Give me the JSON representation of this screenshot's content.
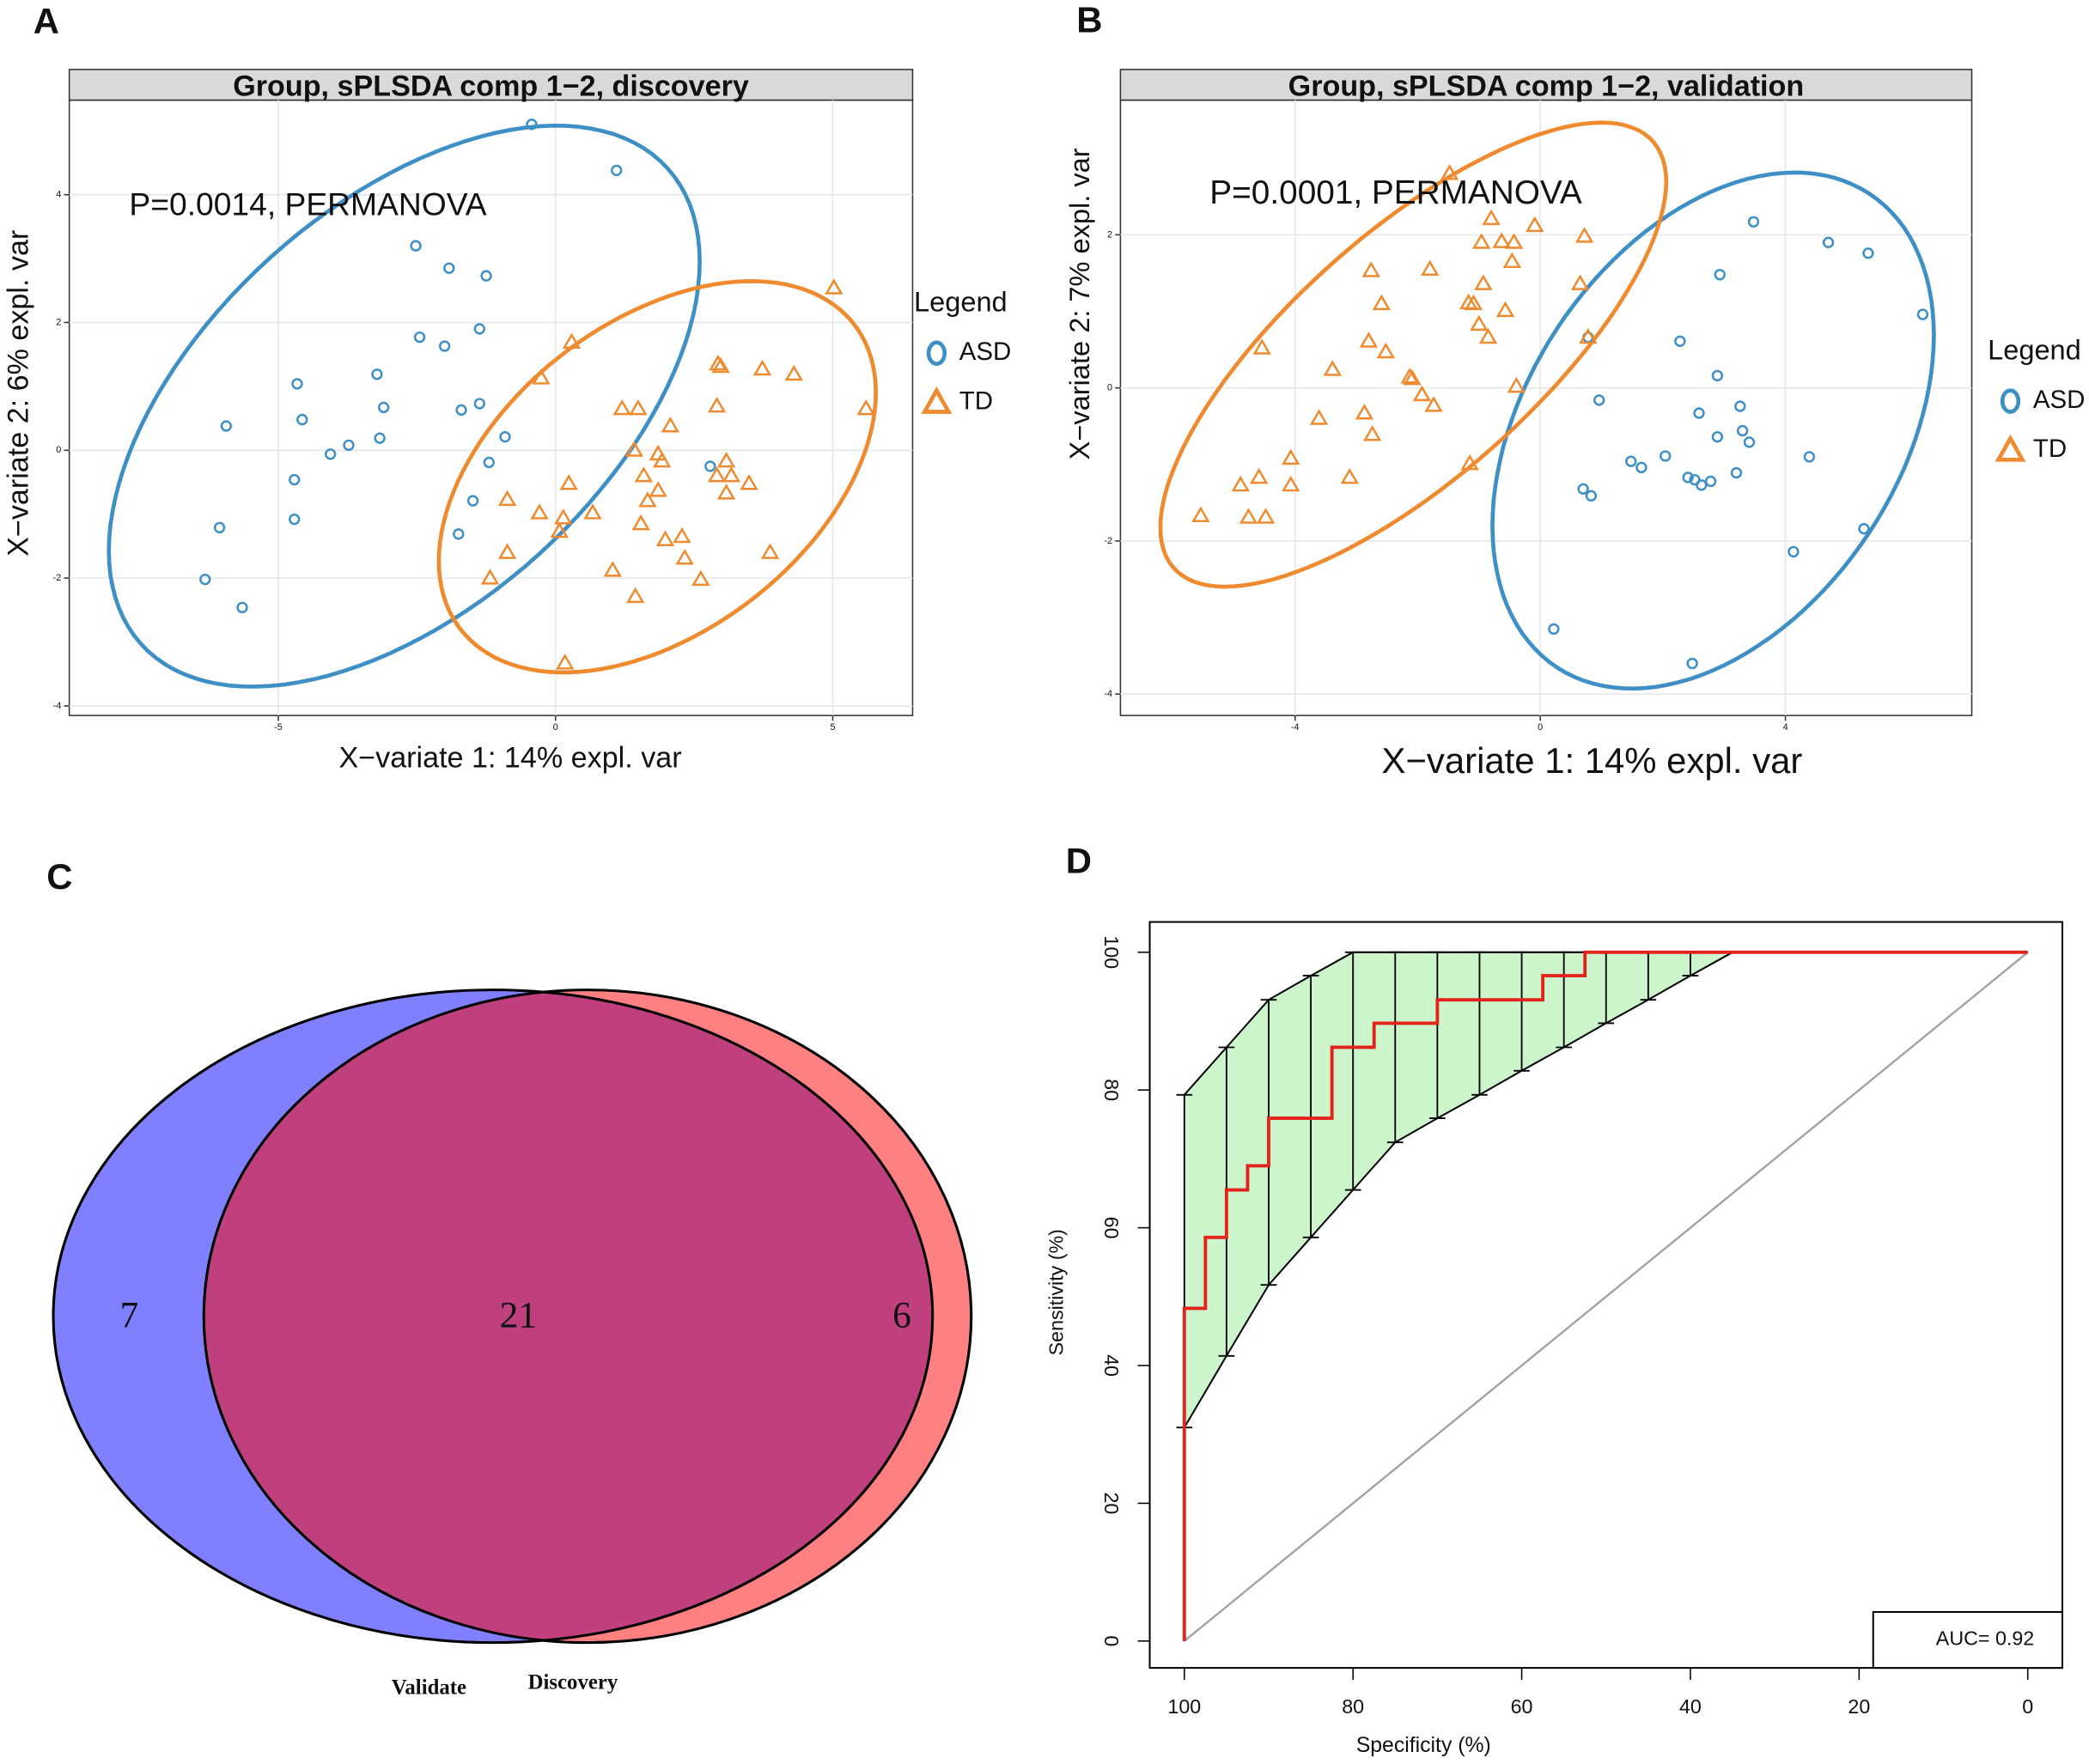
{
  "chart_data": [
    {
      "type": "scatter",
      "panel": "A",
      "title": "Group, sPLSDA comp 1−2,  discovery",
      "annotation": "P=0.0014, PERMANOVA",
      "x_label": "X−variate 1: 14% expl. var",
      "y_label": "X−variate 2: 6% expl. var",
      "legend_title": "Legend",
      "legend": "right",
      "grid": true,
      "xlim": [
        -8.77,
        6.44
      ],
      "ylim": [
        -4.15,
        5.48
      ],
      "xticks": [
        -5,
        0,
        5
      ],
      "yticks": [
        -4,
        -2,
        0,
        2,
        4
      ],
      "series": [
        {
          "name": "ASD",
          "color": "#3d8fc6",
          "marker": "circle",
          "x": [
            -0.43,
            1.1,
            -2.52,
            -1.92,
            -1.25,
            -2.45,
            -2.0,
            -1.37,
            -3.22,
            -4.66,
            -3.1,
            -1.37,
            -1.7,
            -4.57,
            -5.94,
            -3.73,
            -3.17,
            -4.06,
            -0.91,
            -1.2,
            -4.71,
            -1.49,
            -4.71,
            -6.06,
            -1.75,
            -6.32,
            -5.65,
            2.79
          ],
          "values": [
            5.1,
            4.38,
            3.2,
            2.85,
            2.73,
            1.77,
            1.63,
            1.9,
            1.19,
            1.04,
            0.67,
            0.73,
            0.63,
            0.48,
            0.38,
            0.08,
            0.19,
            -0.06,
            0.21,
            -0.19,
            -0.46,
            -0.79,
            -1.08,
            -1.21,
            -1.31,
            -2.02,
            -2.46,
            -0.25
          ]
        },
        {
          "name": "TD",
          "color": "#ef8a2e",
          "marker": "triangle",
          "x": [
            5.02,
            0.29,
            2.93,
            2.98,
            3.73,
            4.3,
            -0.26,
            1.2,
            1.49,
            2.91,
            5.6,
            2.07,
            1.42,
            1.85,
            1.92,
            3.08,
            1.59,
            2.91,
            3.17,
            3.49,
            0.24,
            1.85,
            3.08,
            1.66,
            -0.87,
            0.67,
            -0.29,
            0.14,
            1.54,
            0.07,
            1.98,
            2.28,
            -0.87,
            3.87,
            2.33,
            1.03,
            -1.18,
            2.62,
            1.44,
            0.17
          ],
          "values": [
            2.54,
            1.69,
            1.35,
            1.31,
            1.27,
            1.19,
            1.13,
            0.65,
            0.65,
            0.69,
            0.65,
            0.38,
            0,
            -0.06,
            -0.17,
            -0.17,
            -0.4,
            -0.4,
            -0.4,
            -0.52,
            -0.52,
            -0.63,
            -0.67,
            -0.79,
            -0.77,
            -0.98,
            -0.98,
            -1.06,
            -1.15,
            -1.27,
            -1.4,
            -1.35,
            -1.6,
            -1.6,
            -1.69,
            -1.88,
            -2.0,
            -2.02,
            -2.29,
            -3.33
          ]
        }
      ]
    },
    {
      "type": "scatter",
      "panel": "B",
      "title": "Group, sPLSDA comp 1−2,  validation",
      "annotation": "P=0.0001, PERMANOVA",
      "x_label": "X−variate 1: 14% expl. var",
      "y_label": "X−variate 2: 7% expl. var",
      "legend_title": "Legend",
      "legend": "right",
      "grid": true,
      "xlim": [
        -6.85,
        7.04
      ],
      "ylim": [
        -4.28,
        3.76
      ],
      "xticks": [
        -4,
        0,
        4
      ],
      "yticks": [
        -4,
        -2,
        0,
        2
      ],
      "series": [
        {
          "name": "ASD",
          "color": "#3d8fc6",
          "marker": "circle",
          "x": [
            3.48,
            4.7,
            5.35,
            2.93,
            6.24,
            0.78,
            2.28,
            2.89,
            0.96,
            3.26,
            2.59,
            3.3,
            2.89,
            3.41,
            2.04,
            1.48,
            1.65,
            4.39,
            3.2,
            2.41,
            2.52,
            2.78,
            2.63,
            0.7,
            0.83,
            5.28,
            4.13,
            0.22,
            2.48
          ],
          "values": [
            2.17,
            1.9,
            1.76,
            1.48,
            0.96,
            0.66,
            0.61,
            0.16,
            -0.16,
            -0.24,
            -0.33,
            -0.56,
            -0.64,
            -0.71,
            -0.89,
            -0.96,
            -1.04,
            -0.9,
            -1.11,
            -1.17,
            -1.2,
            -1.22,
            -1.27,
            -1.32,
            -1.41,
            -1.84,
            -2.14,
            -3.15,
            -3.6
          ]
        },
        {
          "name": "TD",
          "color": "#ef8a2e",
          "marker": "triangle",
          "x": [
            -1.48,
            -0.8,
            -0.09,
            -0.96,
            -0.63,
            -0.43,
            0.72,
            -0.46,
            -2.76,
            -1.8,
            0.65,
            -0.93,
            -1.17,
            -1.09,
            -2.59,
            -0.57,
            -1.0,
            0.78,
            -2.8,
            -4.54,
            -0.85,
            -2.52,
            -3.39,
            -2.13,
            -2.09,
            -1.93,
            -1.74,
            -0.39,
            -3.61,
            -2.87,
            -2.74,
            -4.07,
            -1.15,
            -4.59,
            -3.11,
            -4.07,
            -4.89,
            -5.54,
            -4.76,
            -4.48
          ],
          "values": [
            2.8,
            2.21,
            2.12,
            1.9,
            1.91,
            1.9,
            1.98,
            1.65,
            1.53,
            1.55,
            1.36,
            1.36,
            1.11,
            1.1,
            1.1,
            1.01,
            0.83,
            0.66,
            0.61,
            0.52,
            0.66,
            0.47,
            0.24,
            0.14,
            0.12,
            -0.09,
            -0.23,
            0.02,
            -0.4,
            -0.33,
            -0.61,
            -0.92,
            -0.99,
            -1.17,
            -1.17,
            -1.27,
            -1.27,
            -1.67,
            -1.69,
            -1.69
          ]
        }
      ]
    },
    {
      "type": "venn",
      "panel": "C",
      "sets": [
        {
          "name": "Validate",
          "color": "#8080ff",
          "value": 7
        },
        {
          "name": "Discovery",
          "color": "#ff8080",
          "value": 6
        }
      ],
      "intersection": 21,
      "intersection_color": "#c03f7d"
    },
    {
      "type": "roc",
      "panel": "D",
      "x_label": "Specificity (%)",
      "y_label": "Sensitivity (%)",
      "annotation": "AUC= 0.92",
      "xlim": [
        104.1,
        -4.1
      ],
      "ylim": [
        -3.9,
        104.4
      ],
      "xticks": [
        100,
        80,
        60,
        40,
        20,
        0
      ],
      "yticks": [
        0,
        20,
        40,
        60,
        80,
        100
      ],
      "roc_color": "#e3241c",
      "ci_color": "#ccf5cc",
      "diagonal_color": "#a0a0a0",
      "roc": {
        "specificity": [
          100,
          100,
          97.5,
          97.5,
          95,
          95,
          92.5,
          92.5,
          90,
          90,
          82.5,
          82.5,
          77.5,
          77.5,
          70,
          70,
          57.5,
          57.5,
          52.5,
          52.5,
          0
        ],
        "sensitivity": [
          0,
          48.3,
          48.3,
          58.6,
          58.6,
          65.5,
          65.5,
          69,
          69,
          75.9,
          75.9,
          86.2,
          86.2,
          89.7,
          89.7,
          93.1,
          93.1,
          96.6,
          96.6,
          100,
          100
        ]
      },
      "ci": {
        "specificity": [
          100,
          95,
          90,
          85,
          80,
          75,
          70,
          65,
          60,
          55,
          50,
          45,
          40,
          35
        ],
        "lower": [
          31,
          41.4,
          51.7,
          58.6,
          65.5,
          72.4,
          75.9,
          79.3,
          82.8,
          86.2,
          89.7,
          93.1,
          96.6,
          100
        ],
        "upper": [
          79.3,
          86.2,
          93.1,
          96.6,
          100,
          100,
          100,
          100,
          100,
          100,
          100,
          100,
          100,
          100
        ]
      }
    }
  ]
}
